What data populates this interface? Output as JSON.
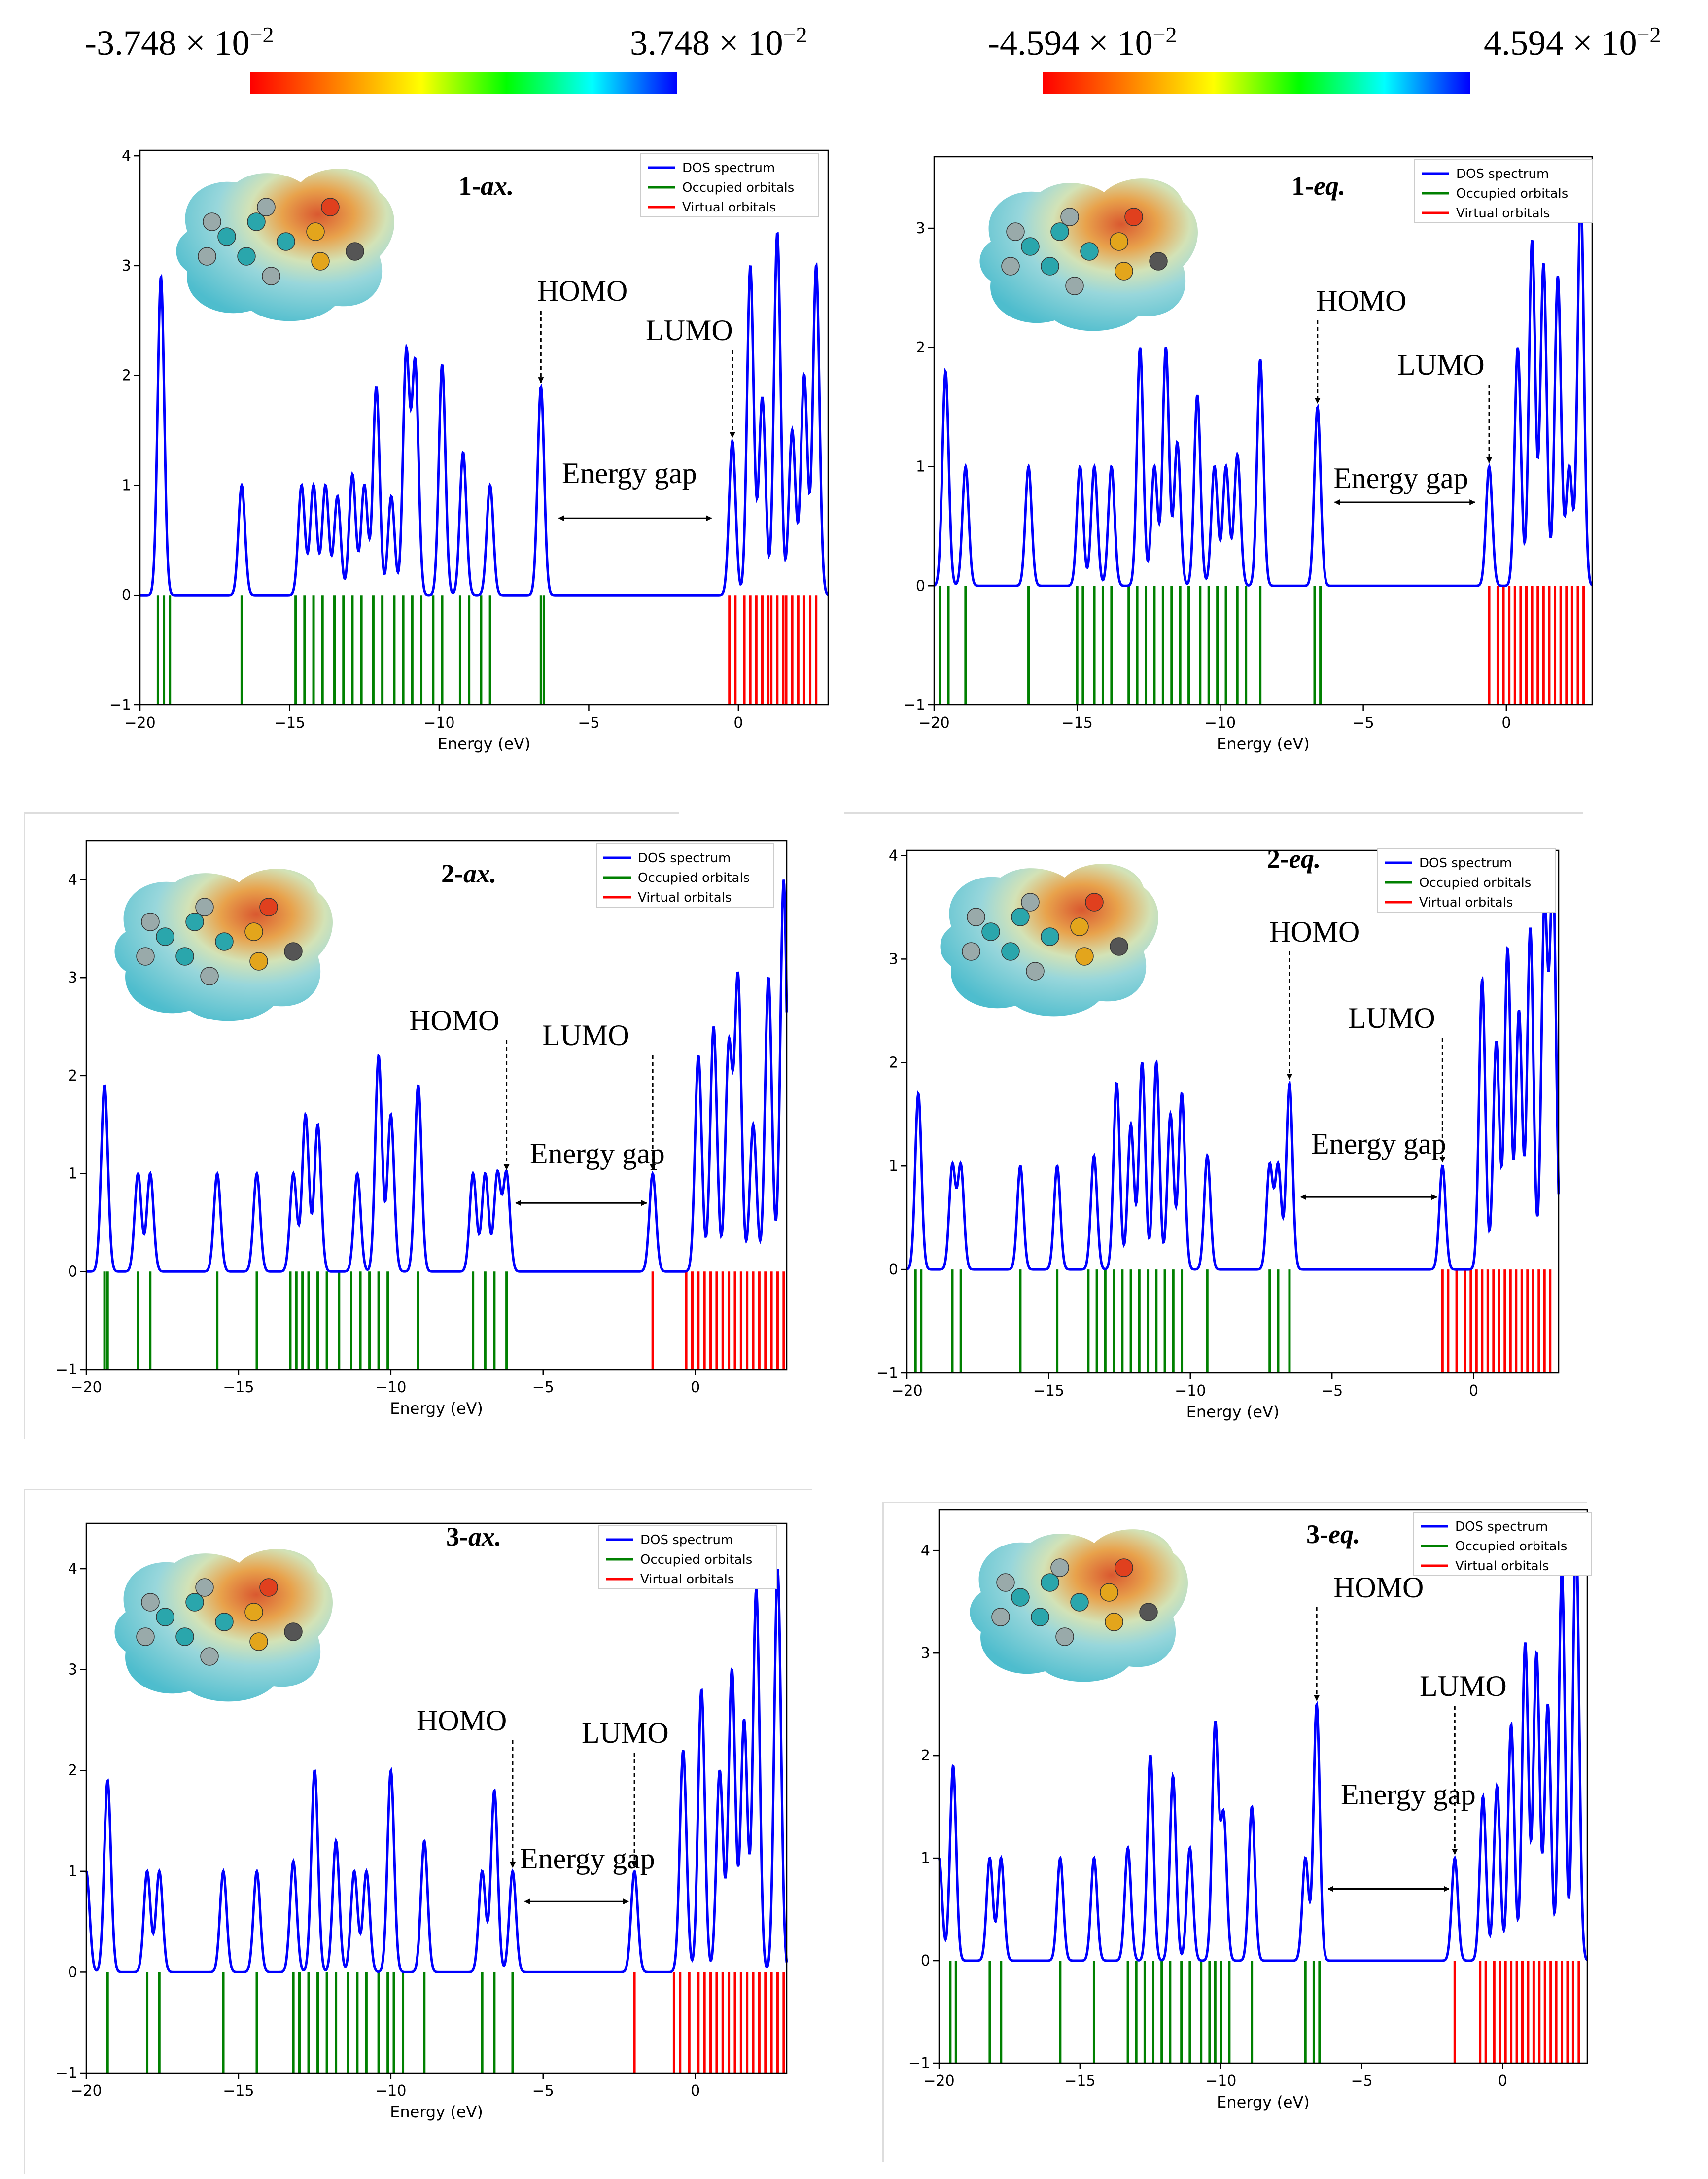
{
  "colorbars": [
    {
      "min_label": "-3.748 × 10",
      "max_label": "3.748 × 10",
      "exponent": "−2",
      "stops": [
        "#ff0000",
        "#ff7f00",
        "#ffff00",
        "#00ff00",
        "#00ffff",
        "#0000ff"
      ]
    },
    {
      "min_label": "-4.594 × 10",
      "max_label": "4.594 × 10",
      "exponent": "−2",
      "stops": [
        "#ff0000",
        "#ff7f00",
        "#ffff00",
        "#00ff00",
        "#00ffff",
        "#0000ff"
      ]
    }
  ],
  "colors": {
    "dos": "#0000ff",
    "occupied": "#008000",
    "virtual": "#ff0000"
  },
  "chart_data": [
    {
      "type": "line",
      "panel_label": "1-",
      "conformer": "ax.",
      "xlabel": "Energy (eV)",
      "xlim": [
        -20,
        3
      ],
      "ylim": [
        -1,
        4.05
      ],
      "xticks": [
        -20,
        -15,
        -10,
        -5,
        0
      ],
      "yticks": [
        -1,
        0,
        1,
        2,
        3,
        4
      ],
      "legend": [
        "DOS spectrum",
        "Occupied orbitals",
        "Virtual orbitals"
      ],
      "homo_label": "HOMO",
      "lumo_label": "LUMO",
      "gap_label": "Energy gap",
      "peaks": [
        [
          -19.3,
          2.9
        ],
        [
          -16.6,
          1.0
        ],
        [
          -14.6,
          1.0
        ],
        [
          -14.2,
          1.0
        ],
        [
          -13.8,
          1.0
        ],
        [
          -13.4,
          0.9
        ],
        [
          -12.9,
          1.1
        ],
        [
          -12.5,
          1.0
        ],
        [
          -12.1,
          1.9
        ],
        [
          -11.6,
          0.9
        ],
        [
          -11.1,
          2.2
        ],
        [
          -10.8,
          2.1
        ],
        [
          -9.9,
          2.1
        ],
        [
          -9.2,
          1.3
        ],
        [
          -8.3,
          1.0
        ],
        [
          -6.6,
          1.9
        ],
        [
          -0.2,
          1.4
        ],
        [
          0.4,
          3.0
        ],
        [
          0.8,
          1.8
        ],
        [
          1.3,
          3.3
        ],
        [
          1.8,
          1.5
        ],
        [
          2.2,
          2.0
        ],
        [
          2.6,
          3.0
        ]
      ],
      "occupied": [
        -19.4,
        -19.2,
        -19.0,
        -16.6,
        -14.8,
        -14.5,
        -14.2,
        -13.9,
        -13.5,
        -13.2,
        -12.9,
        -12.6,
        -12.2,
        -11.9,
        -11.5,
        -11.2,
        -10.9,
        -10.6,
        -10.2,
        -9.9,
        -9.3,
        -9.0,
        -8.6,
        -8.3,
        -6.6,
        -6.5
      ],
      "virtual": [
        -0.3,
        -0.1,
        0.2,
        0.4,
        0.6,
        0.8,
        1.0,
        1.1,
        1.3,
        1.5,
        1.6,
        1.8,
        2.0,
        2.2,
        2.4,
        2.6
      ],
      "homo_x": -6.6,
      "lumo_x": -0.2,
      "gap_range": [
        -6.0,
        -0.9
      ]
    },
    {
      "type": "line",
      "panel_label": "1-",
      "conformer": "eq.",
      "xlabel": "Energy (eV)",
      "xlim": [
        -20,
        3
      ],
      "ylim": [
        -1,
        3.6
      ],
      "xticks": [
        -20,
        -15,
        -10,
        -5,
        0
      ],
      "yticks": [
        -1,
        0,
        1,
        2,
        3
      ],
      "legend": [
        "DOS spectrum",
        "Occupied orbitals",
        "Virtual orbitals"
      ],
      "homo_label": "HOMO",
      "lumo_label": "LUMO",
      "gap_label": "Energy gap",
      "peaks": [
        [
          -19.6,
          1.8
        ],
        [
          -18.9,
          1.0
        ],
        [
          -16.7,
          1.0
        ],
        [
          -14.9,
          1.0
        ],
        [
          -14.4,
          1.0
        ],
        [
          -13.8,
          1.0
        ],
        [
          -12.8,
          2.0
        ],
        [
          -12.3,
          1.0
        ],
        [
          -11.9,
          2.0
        ],
        [
          -11.5,
          1.2
        ],
        [
          -10.8,
          1.6
        ],
        [
          -10.2,
          1.0
        ],
        [
          -9.8,
          1.0
        ],
        [
          -9.4,
          1.1
        ],
        [
          -8.6,
          1.9
        ],
        [
          -6.6,
          1.5
        ],
        [
          -0.6,
          1.0
        ],
        [
          0.4,
          2.0
        ],
        [
          0.9,
          2.9
        ],
        [
          1.3,
          2.7
        ],
        [
          1.8,
          2.6
        ],
        [
          2.2,
          1.0
        ],
        [
          2.6,
          3.3
        ]
      ],
      "occupied": [
        -19.8,
        -19.5,
        -18.9,
        -16.7,
        -15.0,
        -14.8,
        -14.4,
        -14.1,
        -13.8,
        -13.2,
        -12.9,
        -12.6,
        -12.3,
        -12.0,
        -11.7,
        -11.4,
        -11.1,
        -10.7,
        -10.4,
        -10.1,
        -9.8,
        -9.4,
        -9.1,
        -8.6,
        -6.7,
        -6.5
      ],
      "virtual": [
        -0.6,
        -0.3,
        -0.1,
        0.1,
        0.3,
        0.5,
        0.7,
        0.9,
        1.1,
        1.3,
        1.5,
        1.7,
        1.9,
        2.1,
        2.3,
        2.5,
        2.7
      ],
      "homo_x": -6.6,
      "lumo_x": -0.6,
      "gap_range": [
        -6.0,
        -1.1
      ]
    },
    {
      "type": "line",
      "panel_label": "2-",
      "conformer": "ax.",
      "xlabel": "Energy (eV)",
      "xlim": [
        -20,
        3
      ],
      "ylim": [
        -1,
        4.4
      ],
      "xticks": [
        -20,
        -15,
        -10,
        -5,
        0
      ],
      "yticks": [
        -1,
        0,
        1,
        2,
        3,
        4
      ],
      "legend": [
        "DOS spectrum",
        "Occupied orbitals",
        "Virtual orbitals"
      ],
      "homo_label": "HOMO",
      "lumo_label": "LUMO",
      "gap_label": "Energy gap",
      "peaks": [
        [
          -19.4,
          1.9
        ],
        [
          -18.3,
          1.0
        ],
        [
          -17.9,
          1.0
        ],
        [
          -15.7,
          1.0
        ],
        [
          -14.4,
          1.0
        ],
        [
          -13.2,
          1.0
        ],
        [
          -12.8,
          1.6
        ],
        [
          -12.4,
          1.5
        ],
        [
          -11.1,
          1.0
        ],
        [
          -10.4,
          2.2
        ],
        [
          -10.0,
          1.6
        ],
        [
          -9.1,
          1.9
        ],
        [
          -7.3,
          1.0
        ],
        [
          -6.9,
          1.0
        ],
        [
          -6.5,
          1.0
        ],
        [
          -6.2,
          1.0
        ],
        [
          -1.4,
          1.0
        ],
        [
          0.1,
          2.2
        ],
        [
          0.6,
          2.5
        ],
        [
          1.1,
          2.3
        ],
        [
          1.4,
          3.0
        ],
        [
          1.9,
          1.5
        ],
        [
          2.4,
          3.0
        ],
        [
          2.9,
          4.0
        ]
      ],
      "occupied": [
        -19.4,
        -19.3,
        -18.3,
        -17.9,
        -15.7,
        -14.4,
        -13.3,
        -13.1,
        -12.9,
        -12.7,
        -12.4,
        -12.1,
        -11.7,
        -11.3,
        -11.0,
        -10.7,
        -10.4,
        -10.1,
        -9.1,
        -7.3,
        -6.9,
        -6.6,
        -6.2
      ],
      "virtual": [
        -1.4,
        -0.3,
        -0.1,
        0.1,
        0.3,
        0.5,
        0.7,
        0.9,
        1.1,
        1.3,
        1.5,
        1.7,
        1.9,
        2.1,
        2.3,
        2.5,
        2.7,
        2.9
      ],
      "homo_x": -6.2,
      "lumo_x": -1.4,
      "gap_range": [
        -5.9,
        -1.6
      ]
    },
    {
      "type": "line",
      "panel_label": "2-",
      "conformer": "eq.",
      "xlabel": "Energy (eV)",
      "xlim": [
        -20,
        3
      ],
      "ylim": [
        -1,
        4.05
      ],
      "xticks": [
        -20,
        -15,
        -10,
        -5,
        0
      ],
      "yticks": [
        -1,
        0,
        1,
        2,
        3,
        4
      ],
      "legend": [
        "DOS spectrum",
        "Occupied orbitals",
        "Virtual orbitals"
      ],
      "homo_label": "HOMO",
      "lumo_label": "LUMO",
      "gap_label": "Energy gap",
      "peaks": [
        [
          -19.6,
          1.7
        ],
        [
          -18.4,
          1.0
        ],
        [
          -18.1,
          1.0
        ],
        [
          -16.0,
          1.0
        ],
        [
          -14.7,
          1.0
        ],
        [
          -13.4,
          1.1
        ],
        [
          -12.6,
          1.8
        ],
        [
          -12.1,
          1.4
        ],
        [
          -11.7,
          2.0
        ],
        [
          -11.2,
          2.0
        ],
        [
          -10.7,
          1.5
        ],
        [
          -10.3,
          1.7
        ],
        [
          -9.4,
          1.1
        ],
        [
          -7.2,
          1.0
        ],
        [
          -6.9,
          1.0
        ],
        [
          -6.5,
          1.8
        ],
        [
          -1.1,
          1.0
        ],
        [
          0.3,
          2.8
        ],
        [
          0.8,
          2.2
        ],
        [
          1.2,
          3.1
        ],
        [
          1.6,
          2.5
        ],
        [
          2.0,
          3.3
        ],
        [
          2.5,
          3.5
        ],
        [
          2.8,
          3.8
        ]
      ],
      "occupied": [
        -19.7,
        -19.5,
        -18.4,
        -18.1,
        -16.0,
        -14.7,
        -13.6,
        -13.3,
        -13.0,
        -12.7,
        -12.4,
        -12.1,
        -11.8,
        -11.5,
        -11.2,
        -10.9,
        -10.6,
        -10.3,
        -9.4,
        -7.2,
        -6.9,
        -6.5
      ],
      "virtual": [
        -1.1,
        -0.9,
        -0.6,
        -0.3,
        -0.1,
        0.1,
        0.3,
        0.5,
        0.7,
        0.9,
        1.1,
        1.3,
        1.5,
        1.7,
        1.9,
        2.1,
        2.3,
        2.5,
        2.7
      ],
      "homo_x": -6.5,
      "lumo_x": -1.1,
      "gap_range": [
        -6.1,
        -1.3
      ]
    },
    {
      "type": "line",
      "panel_label": "3-",
      "conformer": "ax.",
      "xlabel": "Energy (eV)",
      "xlim": [
        -20,
        3
      ],
      "ylim": [
        -1,
        4.45
      ],
      "xticks": [
        -20,
        -15,
        -10,
        -5,
        0
      ],
      "yticks": [
        -1,
        0,
        1,
        2,
        3,
        4
      ],
      "legend": [
        "DOS spectrum",
        "Occupied orbitals",
        "Virtual orbitals"
      ],
      "homo_label": "HOMO",
      "lumo_label": "LUMO",
      "gap_label": "Energy gap",
      "peaks": [
        [
          -20.0,
          1.0
        ],
        [
          -19.3,
          1.9
        ],
        [
          -18.0,
          1.0
        ],
        [
          -17.6,
          1.0
        ],
        [
          -15.5,
          1.0
        ],
        [
          -14.4,
          1.0
        ],
        [
          -13.2,
          1.1
        ],
        [
          -12.5,
          2.0
        ],
        [
          -11.8,
          1.3
        ],
        [
          -11.2,
          1.0
        ],
        [
          -10.8,
          1.0
        ],
        [
          -10.0,
          2.0
        ],
        [
          -8.9,
          1.3
        ],
        [
          -7.0,
          1.0
        ],
        [
          -6.6,
          1.8
        ],
        [
          -6.0,
          1.0
        ],
        [
          -2.0,
          1.0
        ],
        [
          -0.4,
          2.2
        ],
        [
          0.2,
          2.8
        ],
        [
          0.8,
          2.0
        ],
        [
          1.2,
          3.0
        ],
        [
          1.6,
          2.5
        ],
        [
          2.0,
          3.8
        ],
        [
          2.7,
          4.0
        ]
      ],
      "occupied": [
        -19.3,
        -18.0,
        -17.6,
        -15.5,
        -14.4,
        -13.2,
        -13.0,
        -12.7,
        -12.4,
        -12.1,
        -11.8,
        -11.4,
        -11.1,
        -10.8,
        -10.4,
        -10.1,
        -9.9,
        -9.6,
        -8.9,
        -7.0,
        -6.6,
        -6.0
      ],
      "virtual": [
        -2.0,
        -0.7,
        -0.5,
        -0.2,
        0.1,
        0.3,
        0.5,
        0.7,
        0.9,
        1.1,
        1.3,
        1.5,
        1.7,
        1.9,
        2.1,
        2.3,
        2.5,
        2.7,
        2.9
      ],
      "homo_x": -6.0,
      "lumo_x": -2.0,
      "gap_range": [
        -5.6,
        -2.2
      ]
    },
    {
      "type": "line",
      "panel_label": "3-",
      "conformer": "eq.",
      "xlabel": "Energy (eV)",
      "xlim": [
        -20,
        3
      ],
      "ylim": [
        -1,
        4.4
      ],
      "xticks": [
        -20,
        -15,
        -10,
        -5,
        0
      ],
      "yticks": [
        -1,
        0,
        1,
        2,
        3,
        4
      ],
      "legend": [
        "DOS spectrum",
        "Occupied orbitals",
        "Virtual orbitals"
      ],
      "homo_label": "HOMO",
      "lumo_label": "LUMO",
      "gap_label": "Energy gap",
      "peaks": [
        [
          -20.0,
          1.0
        ],
        [
          -19.5,
          1.9
        ],
        [
          -18.2,
          1.0
        ],
        [
          -17.8,
          1.0
        ],
        [
          -15.7,
          1.0
        ],
        [
          -14.5,
          1.0
        ],
        [
          -13.3,
          1.1
        ],
        [
          -12.5,
          2.0
        ],
        [
          -11.7,
          1.8
        ],
        [
          -11.1,
          1.1
        ],
        [
          -10.2,
          2.3
        ],
        [
          -9.9,
          1.4
        ],
        [
          -8.9,
          1.5
        ],
        [
          -7.0,
          1.0
        ],
        [
          -6.6,
          2.5
        ],
        [
          -1.7,
          1.0
        ],
        [
          -0.7,
          1.6
        ],
        [
          -0.2,
          1.7
        ],
        [
          0.3,
          2.3
        ],
        [
          0.8,
          3.1
        ],
        [
          1.2,
          3.0
        ],
        [
          1.6,
          2.5
        ],
        [
          2.1,
          3.8
        ],
        [
          2.6,
          4.2
        ]
      ],
      "occupied": [
        -19.6,
        -19.4,
        -18.2,
        -17.8,
        -15.7,
        -14.5,
        -13.3,
        -13.0,
        -12.7,
        -12.4,
        -12.1,
        -11.8,
        -11.4,
        -11.1,
        -10.7,
        -10.4,
        -10.2,
        -10.0,
        -9.7,
        -8.9,
        -7.0,
        -6.7,
        -6.5
      ],
      "virtual": [
        -1.7,
        -0.8,
        -0.6,
        -0.3,
        -0.1,
        0.1,
        0.3,
        0.5,
        0.7,
        0.9,
        1.1,
        1.3,
        1.5,
        1.7,
        1.9,
        2.1,
        2.3,
        2.5,
        2.7
      ],
      "homo_x": -6.6,
      "lumo_x": -1.7,
      "gap_range": [
        -6.2,
        -1.9
      ]
    }
  ]
}
